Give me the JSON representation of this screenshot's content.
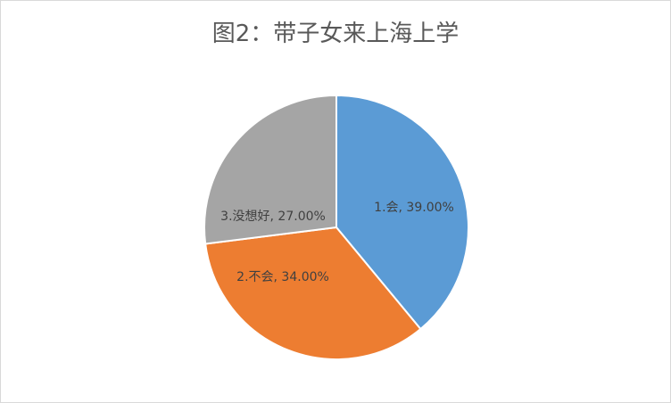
{
  "chart_data": {
    "type": "pie",
    "title": "图2：带子女来上海上学",
    "categories": [
      "1.会",
      "2.不会",
      "3.没想好"
    ],
    "values": [
      39.0,
      34.0,
      27.0
    ],
    "data_labels": [
      "1.会, 39.00%",
      "2.不会, 34.00%",
      "3.没想好, 27.00%"
    ],
    "colors": [
      "#5B9BD5",
      "#ED7D31",
      "#A5A5A5"
    ],
    "start_angle": "top, clockwise",
    "legend": "none"
  }
}
